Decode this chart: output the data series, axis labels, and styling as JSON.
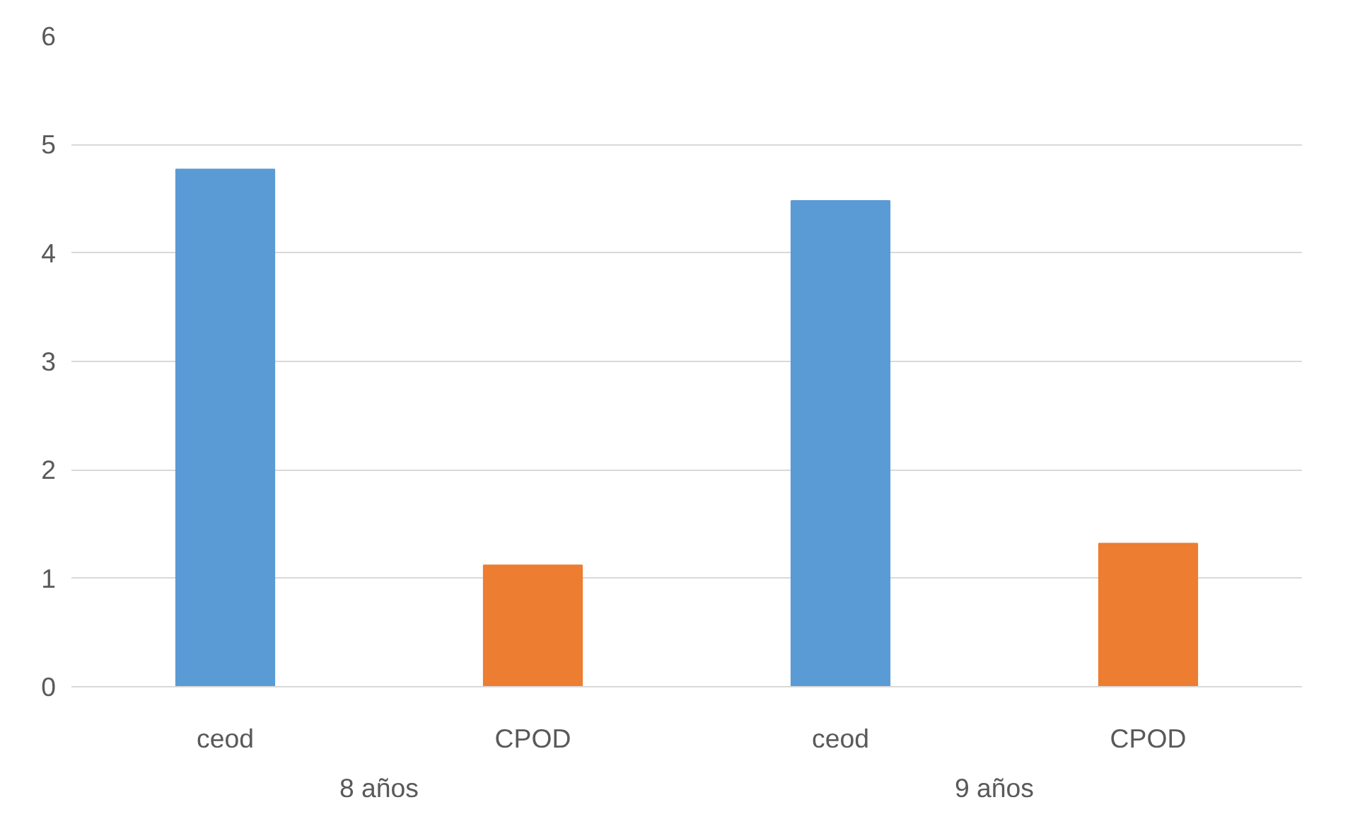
{
  "chart_data": {
    "type": "bar",
    "categories": [
      "ceod",
      "CPOD",
      "ceod",
      "CPOD"
    ],
    "values": [
      4.77,
      1.12,
      4.48,
      1.32
    ],
    "colors": [
      "#5b9bd5",
      "#ed7d31",
      "#5b9bd5",
      "#ed7d31"
    ],
    "annotations": [
      "8 años",
      "9 años"
    ],
    "ylim": [
      0,
      6
    ],
    "yticks": [
      0,
      1,
      2,
      3,
      4,
      5,
      6
    ],
    "grid": "y"
  }
}
